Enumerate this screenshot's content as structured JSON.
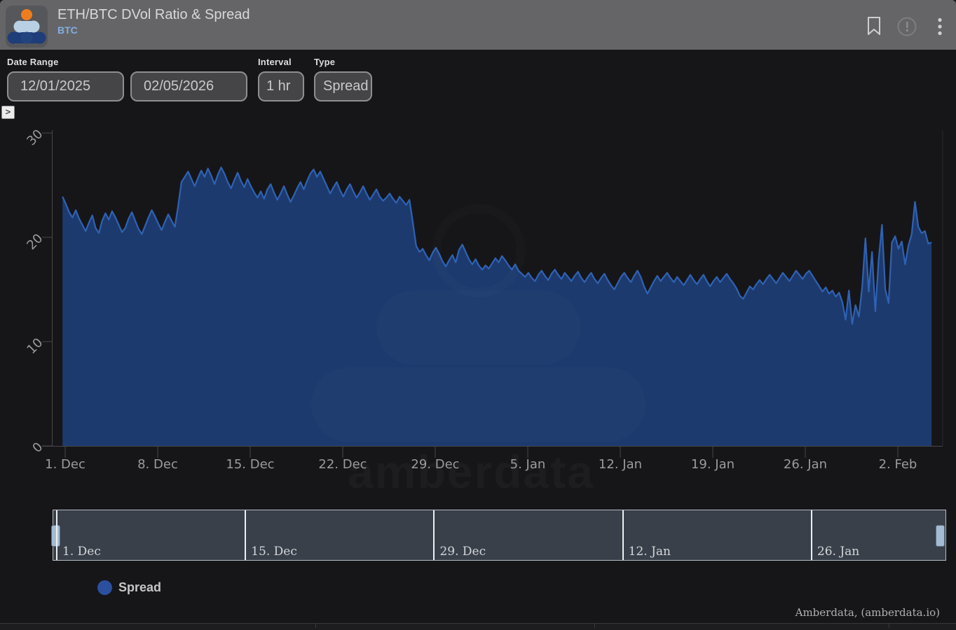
{
  "header": {
    "title": "ETH/BTC DVol Ratio & Spread",
    "subtitle": "BTC",
    "icons": [
      "bookmark-icon",
      "info-icon",
      "kebab-menu-icon"
    ]
  },
  "controls": {
    "date_range_label": "Date Range",
    "date_from": "12/01/2025",
    "date_to": "02/05/2026",
    "interval_label": "Interval",
    "interval_value": "1 hr",
    "type_label": "Type",
    "type_value": "Spread",
    "expand_glyph": ">"
  },
  "chart_data": {
    "type": "area",
    "title": "ETH/BTC DVol Ratio & Spread",
    "x_axis": {
      "day0_date": "12/01/2025",
      "tick_labels": [
        "1. Dec",
        "8. Dec",
        "15. Dec",
        "22. Dec",
        "29. Dec",
        "5. Jan",
        "12. Jan",
        "19. Jan",
        "26. Jan",
        "2. Feb"
      ],
      "tick_days": [
        0,
        7,
        14,
        21,
        28,
        35,
        42,
        49,
        56,
        63
      ]
    },
    "y_axis": {
      "min": 0,
      "max": 30,
      "ticks": [
        0,
        10,
        20,
        30
      ]
    },
    "grid": false,
    "legend": {
      "label": "Spread",
      "color": "#2b509f",
      "position": "bottom-left"
    },
    "series": [
      {
        "name": "Spread",
        "color": "#2f62b4",
        "fill": "#1d3a6e",
        "x_start_day": -0.2,
        "x_step_day": 0.25,
        "values": [
          23.9,
          23.2,
          22.4,
          21.9,
          22.6,
          21.8,
          21.2,
          20.6,
          21.4,
          22.1,
          20.9,
          20.4,
          21.6,
          22.3,
          21.7,
          22.5,
          21.9,
          21.2,
          20.5,
          20.9,
          21.8,
          22.4,
          21.6,
          20.8,
          20.3,
          21.1,
          21.9,
          22.6,
          22.0,
          21.3,
          20.7,
          21.5,
          22.2,
          21.6,
          21.0,
          23.0,
          25.3,
          25.8,
          26.3,
          25.6,
          24.9,
          25.7,
          26.4,
          25.8,
          26.6,
          25.9,
          25.1,
          26.0,
          26.7,
          26.1,
          25.3,
          24.7,
          25.5,
          26.2,
          25.4,
          24.8,
          25.6,
          24.9,
          24.3,
          23.8,
          24.4,
          23.7,
          24.6,
          25.1,
          24.3,
          23.6,
          24.2,
          24.9,
          24.1,
          23.4,
          24.0,
          24.7,
          25.3,
          24.6,
          25.4,
          26.1,
          26.5,
          25.8,
          26.3,
          25.6,
          24.9,
          24.2,
          24.8,
          25.3,
          24.5,
          23.9,
          24.6,
          25.1,
          24.4,
          23.8,
          24.3,
          24.9,
          24.2,
          23.6,
          24.1,
          24.6,
          23.9,
          23.5,
          23.8,
          24.2,
          23.7,
          23.3,
          23.9,
          23.5,
          23.1,
          23.6,
          21.5,
          19.2,
          18.6,
          18.9,
          18.3,
          17.8,
          18.5,
          19.0,
          18.4,
          17.7,
          17.2,
          17.8,
          18.3,
          17.6,
          18.8,
          19.3,
          18.6,
          17.9,
          17.4,
          17.9,
          17.3,
          16.9,
          17.3,
          17.0,
          17.5,
          18.0,
          17.6,
          18.2,
          17.8,
          17.3,
          16.9,
          17.4,
          16.8,
          16.5,
          16.2,
          16.6,
          16.1,
          15.8,
          16.4,
          16.8,
          16.3,
          15.9,
          16.5,
          16.9,
          16.4,
          16.0,
          16.6,
          16.2,
          15.8,
          16.3,
          16.7,
          16.1,
          15.7,
          16.2,
          16.6,
          16.0,
          15.6,
          16.1,
          16.5,
          15.9,
          15.4,
          15.0,
          15.6,
          16.2,
          16.6,
          16.1,
          15.7,
          16.3,
          16.8,
          16.2,
          15.3,
          14.6,
          15.2,
          15.8,
          16.3,
          15.8,
          16.2,
          16.6,
          16.1,
          15.7,
          16.2,
          15.8,
          15.4,
          15.9,
          16.4,
          15.9,
          15.5,
          16.0,
          16.4,
          15.8,
          15.3,
          15.8,
          16.2,
          15.7,
          16.1,
          16.5,
          16.0,
          15.6,
          15.1,
          14.4,
          14.1,
          14.7,
          15.3,
          15.0,
          15.5,
          15.9,
          15.5,
          16.0,
          16.4,
          16.0,
          15.6,
          16.1,
          16.6,
          16.2,
          15.8,
          16.3,
          16.8,
          16.4,
          16.0,
          16.5,
          16.8,
          16.3,
          15.8,
          15.3,
          14.8,
          15.2,
          14.6,
          14.9,
          14.3,
          14.7,
          13.8,
          12.1,
          14.9,
          11.7,
          13.5,
          12.4,
          15.2,
          19.9,
          14.8,
          18.6,
          12.9,
          17.8,
          21.2,
          15.0,
          13.7,
          19.5,
          20.1,
          18.9,
          19.6,
          17.4,
          19.2,
          20.3,
          23.4,
          21.0,
          20.4,
          20.6,
          19.4,
          19.5
        ]
      }
    ]
  },
  "navigator": {
    "labels": [
      {
        "text": "1. Dec",
        "day": 0
      },
      {
        "text": "15. Dec",
        "day": 14
      },
      {
        "text": "29. Dec",
        "day": 28
      },
      {
        "text": "12. Jan",
        "day": 42
      },
      {
        "text": "26. Jan",
        "day": 56
      }
    ]
  },
  "watermark": {
    "text": "amberdata"
  },
  "footer": {
    "credits": "Amberdata, (amberdata.io)"
  }
}
